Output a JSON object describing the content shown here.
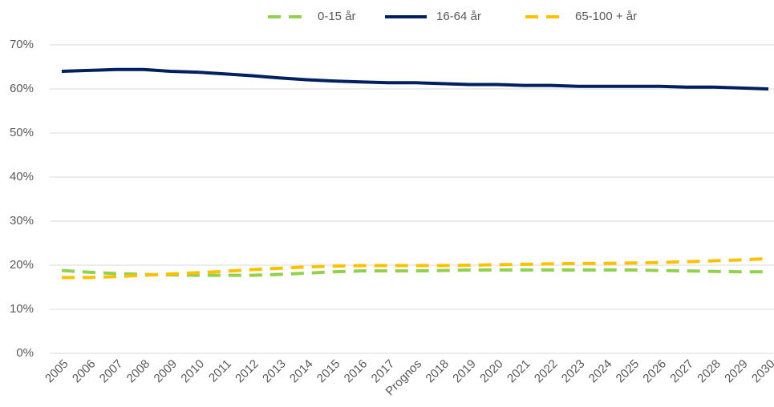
{
  "chart_data": {
    "type": "line",
    "categories": [
      "2005",
      "2006",
      "2007",
      "2008",
      "2009",
      "2010",
      "2011",
      "2012",
      "2013",
      "2014",
      "2015",
      "2016",
      "2017",
      "Prognos",
      "2018",
      "2019",
      "2020",
      "2021",
      "2022",
      "2023",
      "2024",
      "2025",
      "2026",
      "2027",
      "2028",
      "2029",
      "2030"
    ],
    "series": [
      {
        "name": "0-15 år",
        "color": "#92d050",
        "style": "dashed",
        "values": [
          18.8,
          18.4,
          18.1,
          17.9,
          17.8,
          17.7,
          17.7,
          17.7,
          17.9,
          18.2,
          18.5,
          18.7,
          18.7,
          18.7,
          18.8,
          18.9,
          18.9,
          18.9,
          18.9,
          18.9,
          18.9,
          18.9,
          18.8,
          18.7,
          18.6,
          18.5,
          18.5
        ]
      },
      {
        "name": "16-64 år",
        "color": "#002060",
        "style": "solid",
        "values": [
          64.0,
          64.2,
          64.4,
          64.4,
          64.0,
          63.8,
          63.4,
          63.0,
          62.5,
          62.1,
          61.8,
          61.6,
          61.4,
          61.4,
          61.2,
          61.0,
          61.0,
          60.8,
          60.8,
          60.6,
          60.6,
          60.6,
          60.6,
          60.4,
          60.4,
          60.2,
          60.0
        ]
      },
      {
        "name": "65-100 + år",
        "color": "#ffc000",
        "style": "dashed",
        "values": [
          17.2,
          17.2,
          17.4,
          17.7,
          18.0,
          18.3,
          18.6,
          19.0,
          19.3,
          19.6,
          19.8,
          19.9,
          19.9,
          19.9,
          19.9,
          20.0,
          20.1,
          20.2,
          20.3,
          20.4,
          20.4,
          20.5,
          20.6,
          20.8,
          21.0,
          21.2,
          21.5
        ]
      }
    ],
    "ylim": [
      0,
      70
    ],
    "yticks": [
      {
        "value": 0,
        "label": "0%"
      },
      {
        "value": 10,
        "label": "10%"
      },
      {
        "value": 20,
        "label": "20%"
      },
      {
        "value": 30,
        "label": "30%"
      },
      {
        "value": 40,
        "label": "40%"
      },
      {
        "value": 50,
        "label": "50%"
      },
      {
        "value": 60,
        "label": "60%"
      },
      {
        "value": 70,
        "label": "70%"
      }
    ],
    "grid": true,
    "legend": "top"
  }
}
